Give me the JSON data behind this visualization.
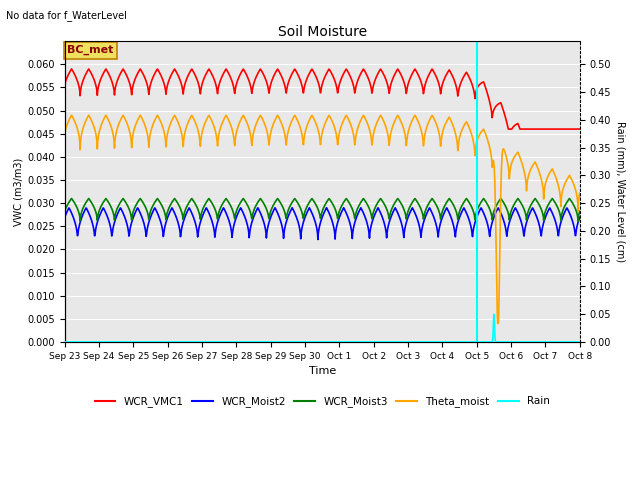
{
  "title": "Soil Moisture",
  "title_note": "No data for f_WaterLevel",
  "ylabel_left": "VWC (m3/m3)",
  "ylabel_right": "Rain (mm), Water Level (cm)",
  "xlabel": "Time",
  "annotation_box": "BC_met",
  "x_tick_labels": [
    "Sep 23",
    "Sep 24",
    "Sep 25",
    "Sep 26",
    "Sep 27",
    "Sep 28",
    "Sep 29",
    "Sep 30",
    "Oct 1",
    "Oct 2",
    "Oct 3",
    "Oct 4",
    "Oct 5",
    "Oct 6",
    "Oct 7",
    "Oct 8"
  ],
  "ylim_left": [
    0.0,
    0.065
  ],
  "ylim_right": [
    0.0,
    0.5417
  ],
  "yticks_left": [
    0.0,
    0.005,
    0.01,
    0.015,
    0.02,
    0.025,
    0.03,
    0.035,
    0.04,
    0.045,
    0.05,
    0.055,
    0.06
  ],
  "yticks_right": [
    0.0,
    0.05,
    0.1,
    0.15,
    0.2,
    0.25,
    0.3,
    0.35,
    0.4,
    0.45,
    0.5
  ],
  "vline_x": 12.0,
  "vline_color": "cyan",
  "background_color": "#e8e8e8",
  "grid_color": "white",
  "annotation_facecolor": "#f0e060",
  "annotation_edgecolor": "#c08000",
  "figsize": [
    6.4,
    4.8
  ],
  "dpi": 100
}
